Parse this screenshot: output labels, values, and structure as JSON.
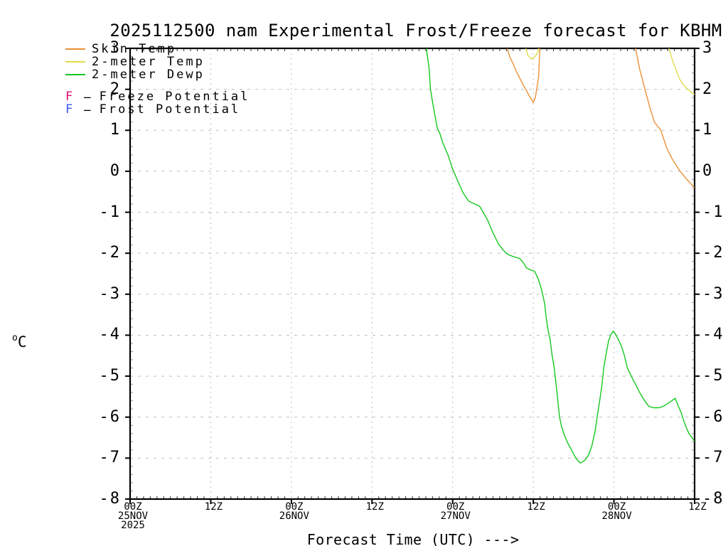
{
  "window": {
    "background": "#ffffff",
    "axis_color": "#000000",
    "grid_color": "#bdbdbd"
  },
  "chart_data": {
    "type": "line",
    "title": "2025112500 nam Experimental Frost/Freeze forecast for KBHM",
    "xlabel": "Forecast Time (UTC) --->",
    "ylabel": {
      "sup": "o",
      "main": "C"
    },
    "grid": true,
    "legend_position": "top-left",
    "x_axis": {
      "unit": "hours since 2025-11-25 00Z",
      "range": [
        0,
        84
      ],
      "major_step_hours": 12,
      "minor_step_hours": 1,
      "ticks": [
        {
          "hour": 0,
          "labels": [
            "00Z",
            "25NOV",
            "2025"
          ]
        },
        {
          "hour": 12,
          "labels": [
            "12Z"
          ]
        },
        {
          "hour": 24,
          "labels": [
            "00Z",
            "26NOV"
          ]
        },
        {
          "hour": 36,
          "labels": [
            "12Z"
          ]
        },
        {
          "hour": 48,
          "labels": [
            "00Z",
            "27NOV"
          ]
        },
        {
          "hour": 60,
          "labels": [
            "12Z"
          ]
        },
        {
          "hour": 72,
          "labels": [
            "00Z",
            "28NOV"
          ]
        },
        {
          "hour": 84,
          "labels": [
            "12Z"
          ]
        }
      ]
    },
    "y_axis": {
      "unit": "degC",
      "range": [
        -8,
        3
      ],
      "major_step": 1,
      "minor_step": 0.2,
      "tick_labels": [
        3,
        2,
        1,
        0,
        -1,
        -2,
        -3,
        -4,
        -5,
        -6,
        -7,
        -8
      ]
    },
    "series": [
      {
        "name": "Skin Temp",
        "color": "#ea9136",
        "segments": [
          [
            [
              55.9,
              3.1
            ],
            [
              56.5,
              2.79
            ],
            [
              57.0,
              2.62
            ],
            [
              57.5,
              2.43
            ],
            [
              58.0,
              2.27
            ],
            [
              58.5,
              2.1
            ],
            [
              58.9,
              2.0
            ],
            [
              59.4,
              1.84
            ],
            [
              60.0,
              1.68
            ],
            [
              60.3,
              1.8
            ],
            [
              60.6,
              2.1
            ],
            [
              60.8,
              2.32
            ],
            [
              60.9,
              2.71
            ],
            [
              61.0,
              3.1
            ]
          ],
          [
            [
              75.1,
              3.1
            ],
            [
              75.8,
              2.51
            ],
            [
              76.6,
              2.01
            ],
            [
              77.3,
              1.58
            ],
            [
              78.0,
              1.2
            ],
            [
              79.0,
              1.0
            ],
            [
              79.8,
              0.59
            ],
            [
              80.7,
              0.29
            ],
            [
              81.8,
              0.01
            ],
            [
              82.8,
              -0.19
            ],
            [
              84.0,
              -0.4
            ]
          ]
        ]
      },
      {
        "name": "2-meter Temp",
        "color": "#e3dc4b",
        "segments": [
          [
            [
              58.7,
              3.1
            ],
            [
              59.2,
              2.83
            ],
            [
              59.7,
              2.74
            ],
            [
              60.2,
              2.79
            ],
            [
              60.6,
              2.88
            ],
            [
              60.9,
              3.1
            ]
          ],
          [
            [
              80.0,
              3.1
            ],
            [
              80.7,
              2.71
            ],
            [
              81.3,
              2.45
            ],
            [
              81.8,
              2.24
            ],
            [
              82.3,
              2.12
            ],
            [
              82.8,
              2.03
            ],
            [
              83.3,
              1.96
            ],
            [
              84.0,
              1.87
            ]
          ]
        ]
      },
      {
        "name": "2-meter Dewp",
        "color": "#15c71f",
        "segments": [
          [
            [
              44.0,
              3.1
            ],
            [
              44.5,
              2.5
            ],
            [
              44.7,
              2.0
            ],
            [
              45.1,
              1.6
            ],
            [
              45.7,
              1.06
            ],
            [
              46.1,
              0.92
            ],
            [
              46.5,
              0.71
            ],
            [
              47.3,
              0.4
            ],
            [
              48.0,
              0.05
            ],
            [
              48.9,
              -0.29
            ],
            [
              49.6,
              -0.54
            ],
            [
              50.4,
              -0.73
            ],
            [
              51.3,
              -0.8
            ],
            [
              52.0,
              -0.85
            ],
            [
              52.6,
              -1.02
            ],
            [
              53.2,
              -1.19
            ],
            [
              53.9,
              -1.47
            ],
            [
              54.8,
              -1.77
            ],
            [
              55.5,
              -1.92
            ],
            [
              56.2,
              -2.03
            ],
            [
              57.0,
              -2.08
            ],
            [
              58.0,
              -2.13
            ],
            [
              58.5,
              -2.23
            ],
            [
              59.0,
              -2.36
            ],
            [
              59.6,
              -2.41
            ],
            [
              60.2,
              -2.44
            ],
            [
              60.7,
              -2.62
            ],
            [
              61.1,
              -2.81
            ],
            [
              61.4,
              -3.01
            ],
            [
              61.7,
              -3.24
            ],
            [
              61.9,
              -3.55
            ],
            [
              62.2,
              -3.88
            ],
            [
              62.5,
              -4.11
            ],
            [
              62.8,
              -4.49
            ],
            [
              63.1,
              -4.78
            ],
            [
              63.5,
              -5.35
            ],
            [
              63.9,
              -6.0
            ],
            [
              64.2,
              -6.22
            ],
            [
              64.6,
              -6.43
            ],
            [
              65.1,
              -6.62
            ],
            [
              65.8,
              -6.84
            ],
            [
              66.4,
              -7.02
            ],
            [
              67.0,
              -7.12
            ],
            [
              67.7,
              -7.05
            ],
            [
              68.2,
              -6.93
            ],
            [
              68.7,
              -6.71
            ],
            [
              69.2,
              -6.34
            ],
            [
              69.5,
              -6.0
            ],
            [
              69.9,
              -5.58
            ],
            [
              70.2,
              -5.23
            ],
            [
              70.5,
              -4.78
            ],
            [
              70.9,
              -4.4
            ],
            [
              71.2,
              -4.14
            ],
            [
              71.5,
              -4.0
            ],
            [
              71.9,
              -3.9
            ],
            [
              72.2,
              -3.97
            ],
            [
              72.6,
              -4.09
            ],
            [
              73.1,
              -4.26
            ],
            [
              73.5,
              -4.47
            ],
            [
              74.0,
              -4.8
            ],
            [
              74.7,
              -5.04
            ],
            [
              75.3,
              -5.23
            ],
            [
              75.9,
              -5.42
            ],
            [
              76.6,
              -5.61
            ],
            [
              77.2,
              -5.74
            ],
            [
              77.9,
              -5.77
            ],
            [
              78.7,
              -5.77
            ],
            [
              79.3,
              -5.74
            ],
            [
              79.9,
              -5.68
            ],
            [
              80.6,
              -5.6
            ],
            [
              81.1,
              -5.54
            ],
            [
              81.5,
              -5.7
            ],
            [
              82.0,
              -5.89
            ],
            [
              82.4,
              -6.1
            ],
            [
              82.8,
              -6.27
            ],
            [
              83.2,
              -6.41
            ],
            [
              83.7,
              -6.52
            ],
            [
              84.0,
              -6.6
            ]
          ]
        ]
      }
    ],
    "markers": [
      {
        "symbol": "F",
        "sep": "-",
        "label": "Freeze Potential",
        "color": "#e0106e"
      },
      {
        "symbol": "F",
        "sep": "-",
        "label": "Frost Potential",
        "color": "#3a55e8"
      }
    ]
  }
}
